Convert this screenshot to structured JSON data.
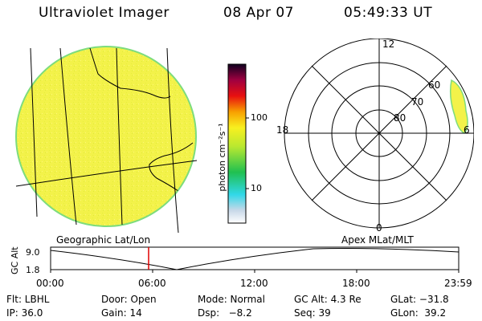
{
  "header": {
    "instrument": "Ultraviolet Imager",
    "date": "08 Apr 07",
    "time": "05:49:33 UT"
  },
  "colorbar": {
    "unit_label": "photon cm⁻²s⁻¹",
    "tick_labels": [
      "100",
      "10"
    ]
  },
  "polar_plot": {
    "mlt_labels": {
      "top": "12",
      "left": "18",
      "right": "6",
      "bottom": "0"
    },
    "lat_labels": [
      "60",
      "70",
      "80"
    ],
    "title": "Apex MLat/MLT"
  },
  "geo_plot": {
    "title": "Geographic Lat/Lon"
  },
  "altitude_strip": {
    "axis_label": "GC Alt",
    "y_ticks": [
      "9.0",
      "1.8"
    ],
    "x_ticks": [
      "00:00",
      "06:00",
      "12:00",
      "18:00",
      "23:59"
    ]
  },
  "info": {
    "row1": {
      "filter": "Flt: LBHL",
      "door": "Door: Open",
      "mode": "Mode: Normal",
      "gc_alt": "GC Alt: 4.3 Re",
      "glat": "GLat: −31.8"
    },
    "row2": {
      "ip": "IP: 36.0",
      "gain": "Gain: 14",
      "dsp": "Dsp:   −8.2",
      "seq": "Seq: 39",
      "glon": "GLon:  39.2"
    }
  },
  "colors": {
    "disk_fill": "#f3f24a",
    "disk_edge": "#7ddc7d",
    "cursor": "#e00000"
  }
}
